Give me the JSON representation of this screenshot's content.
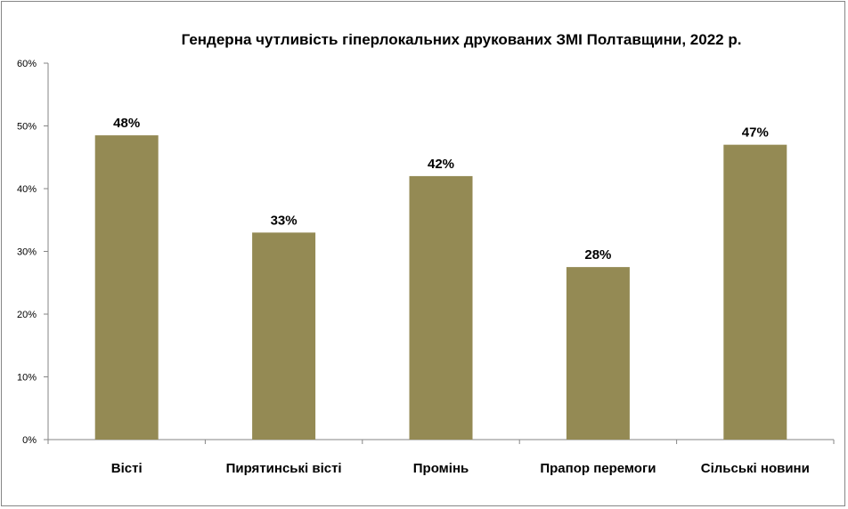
{
  "chart_data": {
    "type": "bar",
    "title": "Гендерна чутливість гіперлокальних друкованих ЗМІ Полтавщини, 2022 р.",
    "categories": [
      "Вісті",
      "Пирятинські вісті",
      "Промінь",
      "Прапор перемоги",
      "Сільські новини"
    ],
    "values": [
      48.5,
      33,
      42,
      27.5,
      47
    ],
    "data_labels": [
      "48%",
      "33%",
      "42%",
      "28%",
      "47%"
    ],
    "y_ticks": [
      "0%",
      "10%",
      "20%",
      "30%",
      "40%",
      "50%",
      "60%"
    ],
    "ylim": [
      0,
      60
    ],
    "bar_color": "#948a54",
    "grid": false,
    "legend": false
  }
}
